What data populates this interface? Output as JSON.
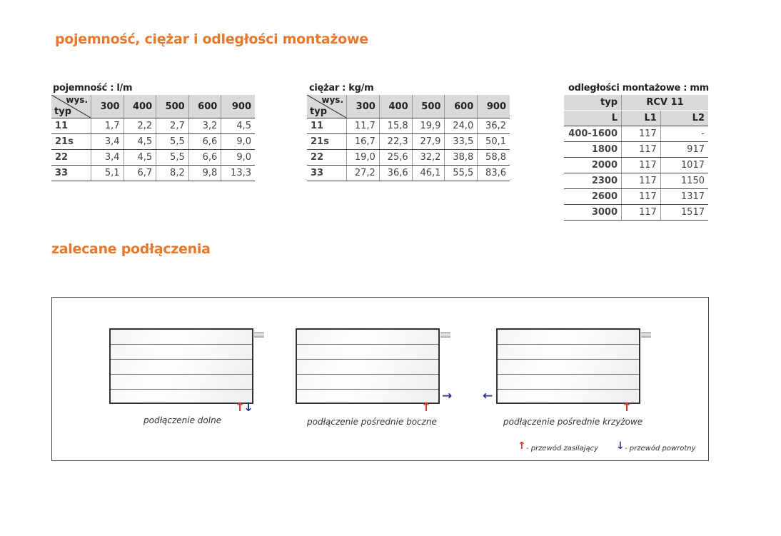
{
  "section1_title": "pojemność, ciężar i odległości montażowe",
  "section2_title": "zalecane podłączenia",
  "capacity": {
    "caption": "pojemność : l/m",
    "corner_top": "wys.",
    "corner_bottom": "typ",
    "columns": [
      "300",
      "400",
      "500",
      "600",
      "900"
    ],
    "rows": [
      [
        "11",
        "1,7",
        "2,2",
        "2,7",
        "3,2",
        "4,5"
      ],
      [
        "21s",
        "3,4",
        "4,5",
        "5,5",
        "6,6",
        "9,0"
      ],
      [
        "22",
        "3,4",
        "4,5",
        "5,5",
        "6,6",
        "9,0"
      ],
      [
        "33",
        "5,1",
        "6,7",
        "8,2",
        "9,8",
        "13,3"
      ]
    ]
  },
  "weight": {
    "caption": "ciężar : kg/m",
    "corner_top": "wys.",
    "corner_bottom": "typ",
    "columns": [
      "300",
      "400",
      "500",
      "600",
      "900"
    ],
    "rows": [
      [
        "11",
        "11,7",
        "15,8",
        "19,9",
        "24,0",
        "36,2"
      ],
      [
        "21s",
        "16,7",
        "22,3",
        "27,9",
        "33,5",
        "50,1"
      ],
      [
        "22",
        "19,0",
        "25,6",
        "32,2",
        "38,8",
        "58,8"
      ],
      [
        "33",
        "27,2",
        "36,6",
        "46,1",
        "55,5",
        "83,6"
      ]
    ]
  },
  "distances": {
    "caption": "odległości montażowe : mm",
    "header1": [
      "typ",
      "RCV 11"
    ],
    "header2": [
      "L",
      "L1",
      "L2"
    ],
    "rows": [
      [
        "400-1600",
        "117",
        "-"
      ],
      [
        "1800",
        "117",
        "917"
      ],
      [
        "2000",
        "117",
        "1017"
      ],
      [
        "2300",
        "117",
        "1150"
      ],
      [
        "2600",
        "117",
        "1317"
      ],
      [
        "3000",
        "117",
        "1517"
      ]
    ]
  },
  "connections": [
    {
      "label": "podłączenie dolne"
    },
    {
      "label": "podłączenie pośrednie boczne"
    },
    {
      "label": "podłączenie pośrednie krzyżowe"
    }
  ],
  "legend": {
    "supply": "- przewód zasilający",
    "return": "- przewód powrotny",
    "supply_color": "#e03030",
    "return_color": "#2a3590"
  },
  "accent_color": "#e8792c"
}
